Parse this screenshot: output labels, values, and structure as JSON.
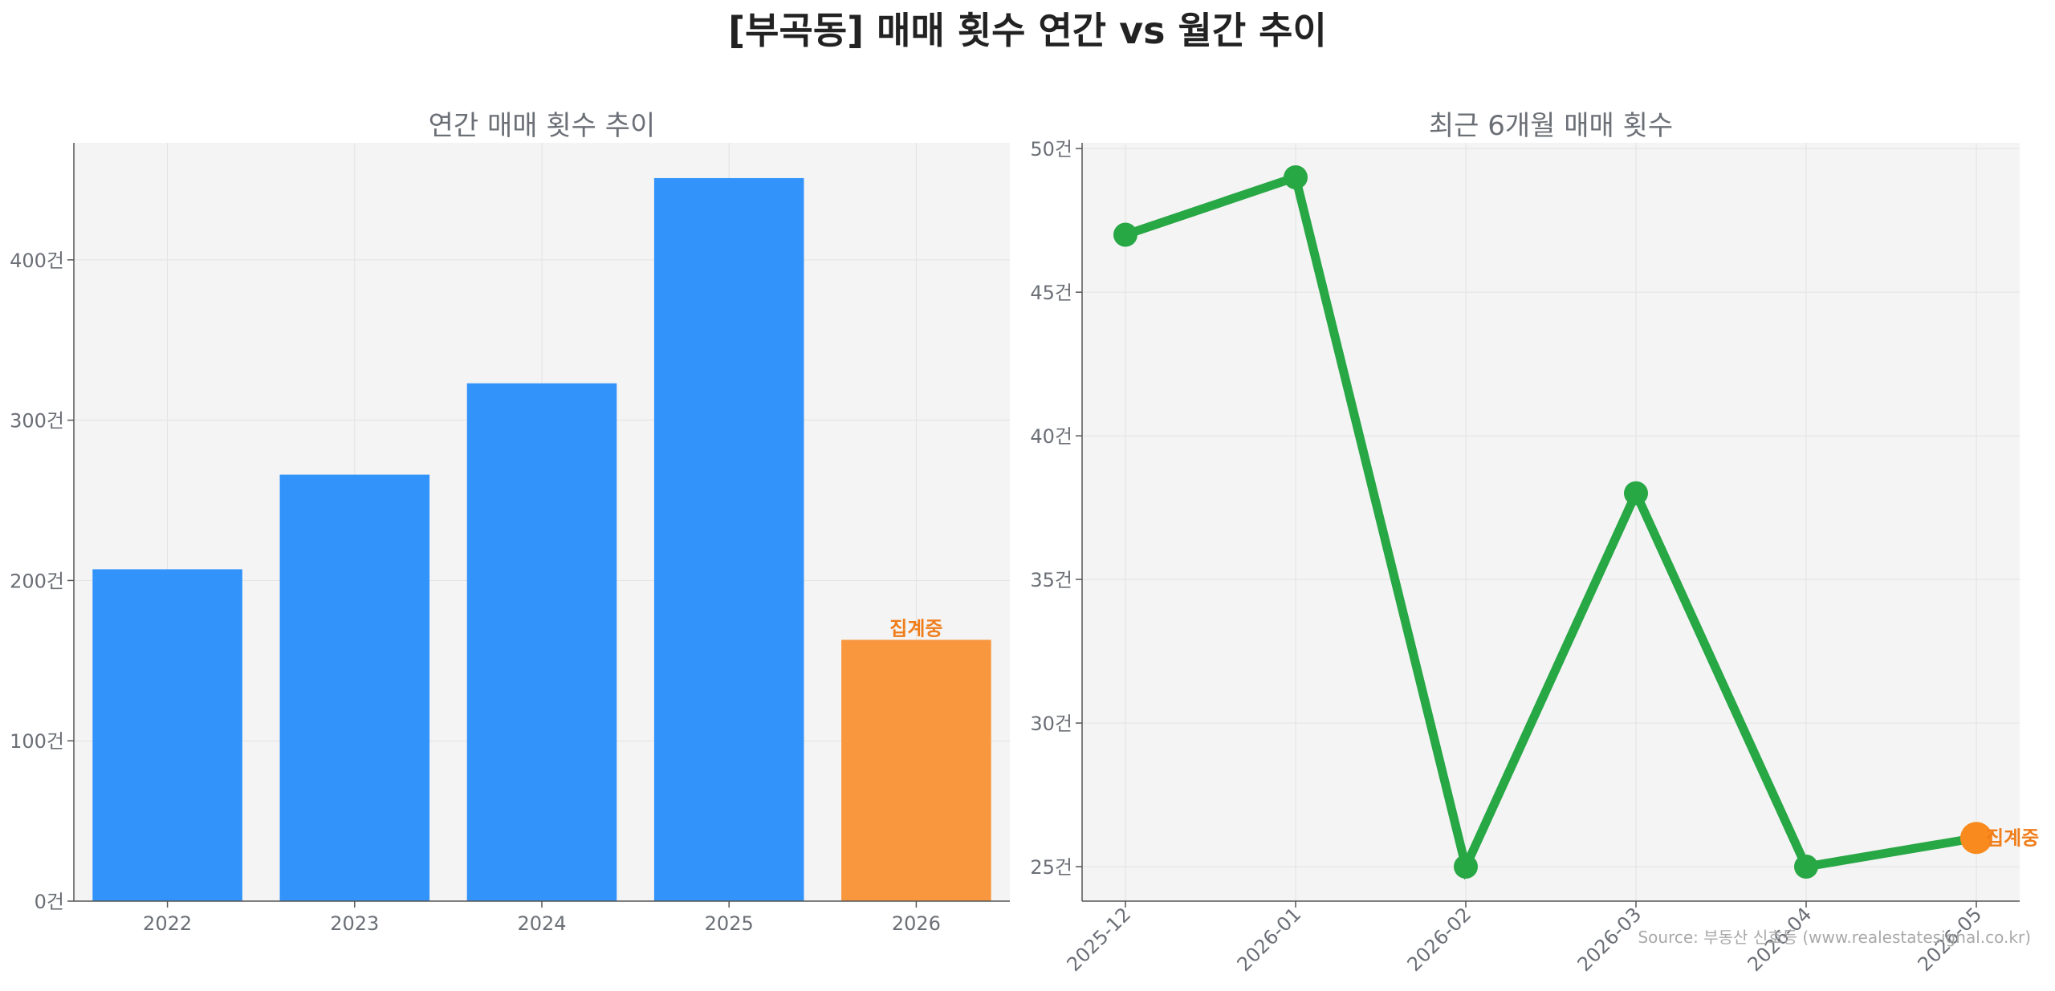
{
  "title": "[부곡동] 매매 횟수 연간 vs 월간 추이",
  "source": "Source: 부동산 신호등 (www.realestatesignal.co.kr)",
  "colors": {
    "bar": "#3293fb",
    "bar_partial": "#f9973f",
    "line": "#28a745",
    "point_partial": "#f98b1e",
    "label_partial": "#f07d1a",
    "panel_bg": "#f4f4f4"
  },
  "chart_data": [
    {
      "type": "bar",
      "title": "연간 매매 횟수 추이",
      "categories": [
        "2022",
        "2023",
        "2024",
        "2025",
        "2026"
      ],
      "values": [
        207,
        266,
        323,
        451,
        163
      ],
      "partial_index": 4,
      "partial_label": "집계중",
      "ylim": [
        0,
        473
      ],
      "yticks": [
        0,
        100,
        200,
        300,
        400
      ],
      "ytick_suffix": "건",
      "grid": true
    },
    {
      "type": "line",
      "title": "최근 6개월 매매 횟수",
      "x": [
        "2025-12",
        "2026-01",
        "2026-02",
        "2026-03",
        "2026-04",
        "2026-05"
      ],
      "values": [
        47,
        49,
        25,
        38,
        25,
        26
      ],
      "partial_index": 5,
      "partial_label": "집계중",
      "ylim": [
        23.8,
        50.2
      ],
      "yticks": [
        25,
        30,
        35,
        40,
        45,
        50
      ],
      "ytick_suffix": "건",
      "grid": true
    }
  ]
}
